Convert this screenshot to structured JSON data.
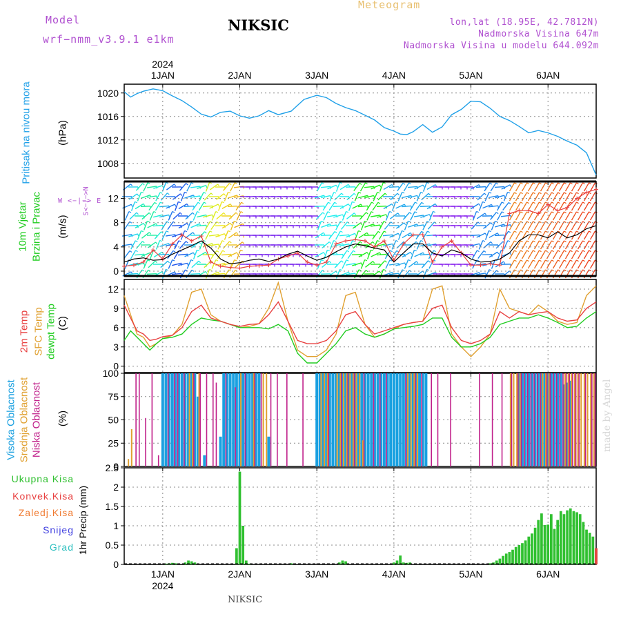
{
  "header": {
    "model_label": "Model",
    "model_name": "wrf−nmm_v3.9.1 e1km",
    "station": "NIKSIC",
    "meteogram": "Meteogram",
    "lonlat": "lon,lat (18.95E, 42.7812N)",
    "altitude": "Nadmorska Visina 647m",
    "model_altitude": "Nadmorska Visina u modelu 644.092m"
  },
  "footer": {
    "station": "NIKSIC",
    "credit": "made by Angel"
  },
  "time_axis": {
    "year": "2024",
    "day_labels": [
      "1JAN",
      "2JAN",
      "3JAN",
      "4JAN",
      "5JAN",
      "6JAN"
    ],
    "day_hours": [
      0,
      24,
      48,
      72,
      96,
      120
    ],
    "range_hours": [
      -12,
      135
    ]
  },
  "colors": {
    "pressure": "#1fa0e8",
    "t2m": "#e84040",
    "tsfc": "#e0a030",
    "tdew": "#20cc20",
    "high_cloud": "#1aa0e0",
    "mid_cloud": "#e0a030",
    "low_cloud": "#c0208a",
    "precip": "#30c030",
    "wind_speed": "#000000",
    "wind_gust": "#e84040"
  },
  "chart_data": [
    {
      "type": "line",
      "name": "pressure",
      "label": "Pritisak na nivou mora",
      "ylabel": "(hPa)",
      "yticks": [
        "1008",
        "1012",
        "1016",
        "1020"
      ],
      "ylim": [
        1005.5,
        1021.5
      ],
      "x": [
        -12,
        -10,
        -8,
        -6,
        -3,
        0,
        3,
        6,
        9,
        12,
        15,
        18,
        21,
        24,
        27,
        30,
        33,
        36,
        40,
        44,
        48,
        51,
        54,
        57,
        60,
        63,
        66,
        69,
        72,
        74,
        76,
        78,
        81,
        84,
        87,
        90,
        93,
        96,
        99,
        102,
        105,
        108,
        111,
        114,
        117,
        120,
        123,
        126,
        129,
        132,
        135
      ],
      "series": [
        {
          "values": [
            1020.2,
            1019.3,
            1019.9,
            1020.3,
            1020.7,
            1020.4,
            1019.5,
            1018.7,
            1017.6,
            1016.4,
            1015.9,
            1016.7,
            1016.9,
            1016.1,
            1015.7,
            1016.1,
            1017.0,
            1016.3,
            1016.9,
            1018.9,
            1019.6,
            1019.2,
            1018.2,
            1017.5,
            1017.0,
            1016.2,
            1015.4,
            1014.1,
            1013.5,
            1013.0,
            1012.9,
            1013.4,
            1014.6,
            1013.3,
            1014.2,
            1016.3,
            1017.2,
            1018.6,
            1018.5,
            1017.4,
            1016.0,
            1015.3,
            1014.3,
            1013.2,
            1013.6,
            1013.2,
            1012.6,
            1011.8,
            1011.1,
            1009.8,
            1006.0
          ]
        }
      ]
    },
    {
      "type": "line",
      "name": "wind",
      "label": "10m Vjetar Brzina i Pravac",
      "ylabel": "(m/s)",
      "rose": "W <−|−> E",
      "rose_axis": "S<−|−>N",
      "yticks": [
        "0",
        "4",
        "8",
        "12"
      ],
      "ylim": [
        -0.8,
        14.8
      ],
      "x": [
        -12,
        -9,
        -6,
        -3,
        0,
        3,
        6,
        9,
        12,
        15,
        18,
        21,
        24,
        27,
        30,
        33,
        36,
        39,
        42,
        45,
        48,
        51,
        54,
        57,
        60,
        63,
        66,
        69,
        72,
        75,
        78,
        81,
        84,
        87,
        90,
        93,
        96,
        99,
        102,
        105,
        108,
        111,
        114,
        117,
        120,
        123,
        126,
        129,
        132,
        135
      ],
      "series": [
        {
          "name": "speed",
          "values": [
            1.5,
            2.0,
            2.2,
            1.8,
            1.9,
            2.8,
            3.5,
            4.2,
            5.0,
            3.8,
            2.0,
            1.2,
            1.4,
            1.8,
            2.0,
            1.6,
            2.0,
            2.8,
            3.3,
            2.5,
            1.8,
            2.3,
            3.2,
            4.0,
            4.5,
            4.2,
            3.8,
            3.5,
            1.5,
            3.0,
            4.5,
            4.5,
            3.0,
            2.5,
            3.5,
            3.0,
            2.0,
            1.5,
            1.6,
            2.0,
            3.0,
            5.0,
            6.0,
            6.0,
            5.5,
            6.5,
            5.5,
            6.0,
            7.0,
            7.5
          ]
        },
        {
          "name": "gust",
          "values": [
            0.8,
            1.0,
            1.5,
            3.5,
            2.0,
            4.5,
            6.0,
            5.0,
            5.8,
            1.5,
            0.8,
            0.6,
            0.5,
            0.8,
            0.9,
            1.0,
            2.0,
            2.5,
            3.0,
            1.5,
            1.0,
            1.5,
            4.5,
            5.0,
            5.2,
            5.0,
            4.0,
            5.0,
            1.8,
            4.5,
            6.0,
            6.0,
            1.5,
            4.0,
            5.0,
            3.0,
            1.0,
            1.0,
            1.2,
            1.0,
            9.5,
            10.0,
            10.0,
            9.5,
            11.0,
            10.0,
            10.5,
            12.0,
            13.0,
            13.5
          ]
        }
      ]
    },
    {
      "type": "line",
      "name": "temperature",
      "labels": [
        "2m Temp",
        "SFC Temp",
        "dewpt Temp"
      ],
      "ylabel": "(C)",
      "yticks": [
        "0",
        "3",
        "6",
        "9",
        "12"
      ],
      "ylim": [
        -1,
        13.5
      ],
      "x": [
        -12,
        -10,
        -8,
        -6,
        -4,
        -2,
        0,
        3,
        6,
        9,
        12,
        15,
        18,
        21,
        24,
        27,
        30,
        33,
        36,
        39,
        42,
        45,
        48,
        51,
        54,
        57,
        60,
        63,
        66,
        69,
        72,
        75,
        78,
        81,
        84,
        87,
        90,
        93,
        96,
        99,
        102,
        105,
        108,
        111,
        114,
        117,
        120,
        123,
        126,
        129,
        132,
        135
      ],
      "series": [
        {
          "name": "2m Temp",
          "values": [
            9.5,
            7.5,
            5.5,
            5.0,
            4.0,
            4.2,
            4.6,
            4.8,
            6.0,
            8.5,
            9.5,
            7.5,
            7.0,
            6.5,
            6.2,
            6.5,
            6.6,
            8.0,
            10.0,
            7.0,
            4.0,
            3.5,
            3.5,
            4.0,
            5.5,
            8.0,
            8.5,
            6.5,
            5.0,
            5.5,
            6.0,
            6.5,
            6.8,
            7.0,
            9.0,
            9.5,
            6.0,
            4.0,
            3.5,
            4.0,
            5.0,
            8.5,
            7.5,
            8.5,
            8.0,
            8.3,
            8.5,
            7.5,
            7.0,
            7.2,
            9.0,
            10.0
          ]
        },
        {
          "name": "SFC Temp",
          "values": [
            11.0,
            8.0,
            5.0,
            4.5,
            3.0,
            3.5,
            4.3,
            4.8,
            6.5,
            11.5,
            12.0,
            8.0,
            7.0,
            6.5,
            6.0,
            6.2,
            6.6,
            9.0,
            13.0,
            7.0,
            2.5,
            1.5,
            1.5,
            2.5,
            5.0,
            11.0,
            11.5,
            6.5,
            4.5,
            5.0,
            5.8,
            6.5,
            6.8,
            7.0,
            12.0,
            12.5,
            5.0,
            3.0,
            1.5,
            3.0,
            5.0,
            12.0,
            9.0,
            8.5,
            8.0,
            9.5,
            8.5,
            7.0,
            6.5,
            6.8,
            11.0,
            12.5
          ]
        },
        {
          "name": "dewpt Temp",
          "values": [
            4.0,
            5.5,
            4.5,
            3.5,
            2.5,
            3.5,
            4.3,
            4.5,
            5.0,
            6.5,
            7.5,
            7.2,
            7.0,
            6.5,
            6.0,
            6.0,
            6.0,
            5.8,
            6.5,
            5.5,
            2.0,
            0.5,
            0.5,
            2.0,
            3.5,
            5.5,
            6.0,
            5.0,
            4.5,
            5.0,
            5.8,
            6.0,
            6.2,
            6.5,
            7.5,
            7.5,
            4.5,
            3.0,
            3.0,
            3.5,
            4.5,
            6.5,
            7.0,
            7.5,
            7.5,
            8.0,
            7.5,
            6.8,
            6.0,
            6.2,
            7.5,
            8.5
          ]
        }
      ]
    },
    {
      "type": "bar",
      "name": "clouds",
      "labels": [
        "Visoka Oblacnost",
        "Srednja Oblacnost",
        "Niska Oblacnost"
      ],
      "ylabel": "(%)",
      "yticks": [
        "0",
        "25",
        "50",
        "75",
        "100"
      ],
      "ylim": [
        0,
        100
      ],
      "series": [
        {
          "name": "Visoka Oblacnost",
          "x": [
            0,
            1,
            2,
            3,
            4,
            5,
            6,
            7,
            8,
            9,
            10,
            11,
            13,
            18,
            19,
            20,
            21,
            22,
            23,
            24,
            25,
            26,
            27,
            28,
            29,
            30,
            33,
            48,
            49,
            50,
            51,
            52,
            53,
            54,
            55,
            56,
            57,
            58,
            59,
            60,
            61,
            62,
            63,
            64,
            65,
            66,
            67,
            68,
            69,
            70,
            71,
            72,
            73,
            74,
            75,
            76,
            77,
            78,
            79,
            80,
            81,
            82,
            111,
            112,
            113,
            114,
            115,
            116,
            117,
            118,
            119,
            120,
            121,
            122,
            123,
            124,
            125,
            126,
            127
          ],
          "values": [
            100,
            100,
            100,
            100,
            100,
            100,
            100,
            100,
            100,
            100,
            100,
            75,
            12,
            32,
            100,
            100,
            100,
            100,
            100,
            100,
            100,
            100,
            100,
            100,
            100,
            100,
            32,
            100,
            100,
            100,
            100,
            100,
            100,
            100,
            100,
            100,
            100,
            100,
            100,
            100,
            100,
            100,
            100,
            100,
            100,
            100,
            100,
            100,
            100,
            100,
            100,
            100,
            100,
            100,
            100,
            100,
            100,
            100,
            100,
            100,
            100,
            100,
            100,
            100,
            100,
            100,
            100,
            100,
            100,
            100,
            100,
            100,
            100,
            100,
            100,
            100,
            88,
            90,
            92
          ]
        },
        {
          "name": "Srednja Oblacnost",
          "x": [
            -11,
            -10,
            8,
            9,
            11,
            24,
            28,
            31,
            32,
            49,
            50,
            51,
            54,
            55,
            56,
            57,
            58,
            59,
            60,
            61,
            62,
            76,
            77,
            78,
            79,
            108,
            109,
            110,
            111,
            118,
            119,
            120,
            125,
            126,
            127,
            128,
            129,
            130,
            131,
            132,
            133,
            134
          ],
          "values": [
            8,
            40,
            100,
            100,
            100,
            100,
            100,
            100,
            100,
            100,
            100,
            100,
            100,
            100,
            100,
            100,
            100,
            100,
            100,
            100,
            28,
            100,
            100,
            100,
            100,
            100,
            100,
            100,
            100,
            100,
            100,
            100,
            100,
            100,
            100,
            100,
            100,
            100,
            100,
            100,
            100,
            100
          ]
        },
        {
          "name": "Niska Oblacnost",
          "x": [
            -8,
            -7,
            -5,
            -3,
            -1,
            2,
            4,
            5,
            7,
            10,
            12,
            14,
            16,
            17,
            20,
            23,
            26,
            29,
            31,
            34,
            36,
            39,
            44,
            52,
            56,
            58,
            60,
            63,
            66,
            68,
            70,
            76,
            79,
            81,
            84,
            86,
            90,
            99,
            103,
            106,
            109,
            111,
            112,
            113,
            114,
            115,
            116,
            117,
            118,
            120,
            121,
            122,
            123,
            124,
            125,
            126,
            127,
            128,
            129,
            130,
            132,
            134,
            135
          ],
          "values": [
            100,
            100,
            52,
            100,
            12,
            100,
            100,
            100,
            100,
            100,
            100,
            100,
            100,
            90,
            100,
            85,
            100,
            100,
            100,
            100,
            100,
            100,
            100,
            100,
            100,
            100,
            100,
            100,
            100,
            100,
            100,
            100,
            100,
            100,
            100,
            100,
            100,
            100,
            100,
            100,
            100,
            100,
            100,
            100,
            100,
            100,
            100,
            100,
            100,
            100,
            100,
            100,
            100,
            100,
            100,
            100,
            100,
            100,
            100,
            100,
            100,
            100,
            100
          ]
        }
      ]
    },
    {
      "type": "bar",
      "name": "precipitation",
      "labels": [
        "Ukupna Kisa",
        "Konvek.Kisa",
        "Zaledj.Kisa",
        "Snijeg",
        "Grad"
      ],
      "ylabel": "1hr Precip (mm)",
      "yticks": [
        "0",
        "0.5",
        "1",
        "1.5",
        "2",
        "2.5"
      ],
      "ylim": [
        0,
        2.5
      ],
      "series": [
        {
          "name": "Ukupna Kisa",
          "x": [
            1,
            2,
            3,
            4,
            7,
            8,
            9,
            10,
            23,
            24,
            25,
            26,
            27,
            40,
            55,
            56,
            57,
            72,
            73,
            74,
            75,
            76,
            77,
            102,
            103,
            104,
            105,
            106,
            107,
            108,
            109,
            110,
            111,
            112,
            113,
            114,
            115,
            116,
            117,
            118,
            119,
            120,
            121,
            122,
            123,
            124,
            125,
            126,
            127,
            128,
            129,
            130,
            131,
            132,
            133,
            134,
            135
          ],
          "values": [
            0.02,
            0.03,
            0.04,
            0.03,
            0.05,
            0.1,
            0.08,
            0.05,
            0.42,
            2.4,
            1.0,
            0.1,
            0.02,
            0.03,
            0.05,
            0.1,
            0.08,
            0.05,
            0.1,
            0.23,
            0.05,
            0.04,
            0.05,
            0.03,
            0.05,
            0.1,
            0.15,
            0.22,
            0.28,
            0.32,
            0.38,
            0.45,
            0.5,
            0.55,
            0.62,
            0.72,
            0.8,
            0.95,
            1.15,
            1.32,
            1.02,
            1.03,
            1.3,
            0.92,
            1.15,
            1.38,
            1.3,
            1.4,
            1.45,
            1.38,
            1.35,
            1.3,
            1.1,
            0.9,
            0.82,
            0.72,
            0.42
          ]
        },
        {
          "name": "Konvek.Kisa",
          "x": [
            135
          ],
          "values": [
            0.42
          ]
        }
      ]
    }
  ]
}
